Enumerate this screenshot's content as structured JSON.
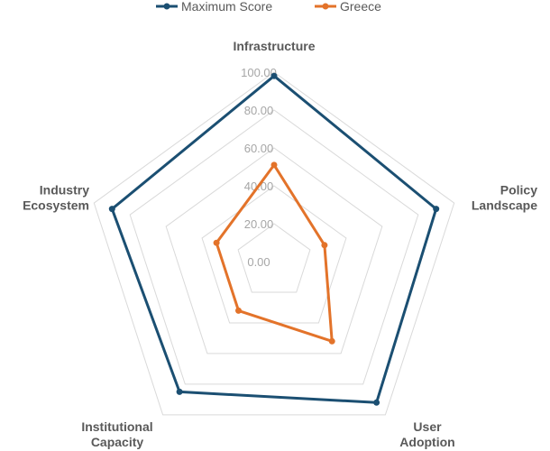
{
  "chart_data": {
    "type": "radar",
    "categories": [
      [
        "Infrastructure"
      ],
      [
        "Policy",
        "Landscape"
      ],
      [
        "User",
        "Adoption"
      ],
      [
        "Institutional",
        "Capacity"
      ],
      [
        "Industry",
        "Ecosystem"
      ]
    ],
    "series": [
      {
        "name": "Maximum Score",
        "values": [
          98,
          90,
          92,
          85,
          90
        ],
        "color": "#1b4f72"
      },
      {
        "name": "Greece",
        "values": [
          51,
          28,
          52,
          32,
          32
        ],
        "color": "#e3732a"
      }
    ],
    "rlim": [
      0,
      100
    ],
    "ticks": [
      "0.00",
      "20.00",
      "40.00",
      "60.00",
      "80.00",
      "100.00"
    ],
    "grid": true,
    "legend_position": "top-center"
  }
}
